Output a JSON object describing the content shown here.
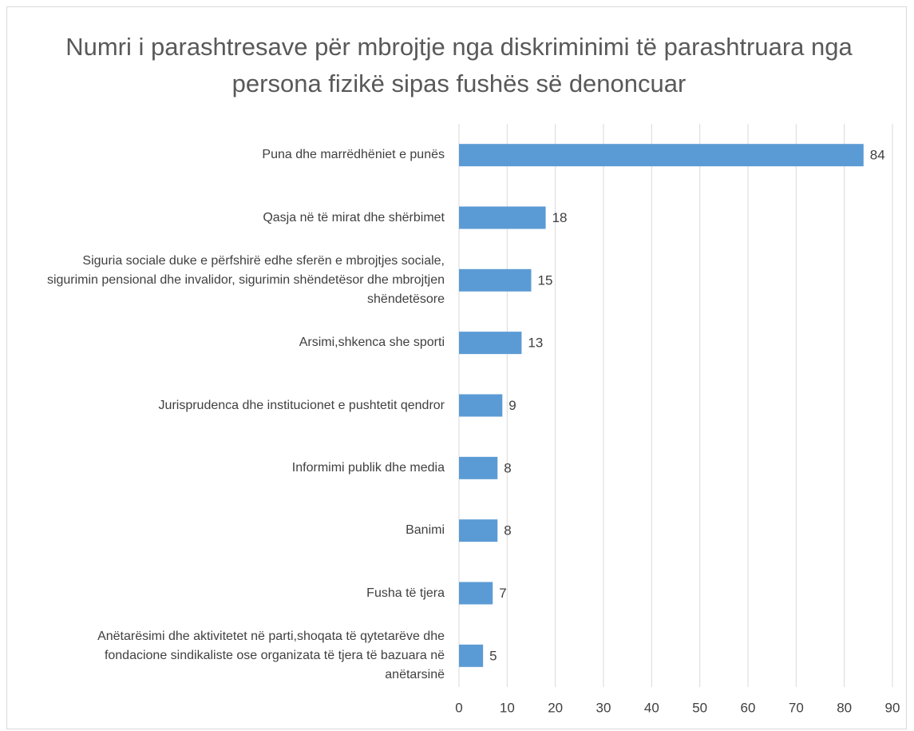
{
  "chart_data": {
    "type": "bar",
    "orientation": "horizontal",
    "title": "Numri i parashtresave për mbrojtje nga diskriminimi të parashtruara nga persona fizikë sipas fushës së denoncuar",
    "categories": [
      "Puna dhe marrëdhëniet e punës",
      "Qasja në të mirat dhe shërbimet",
      "Siguria sociale duke e përfshirë edhe sferën e mbrojtjes sociale, sigurimin pensional dhe invalidor, sigurimin shëndetësor dhe mbrojtjen shëndetësore",
      "Arsimi,shkenca she sporti",
      "Jurisprudenca dhe institucionet e pushtetit qendror",
      "Informimi publik dhe media",
      "Banimi",
      "Fusha të tjera",
      "Anëtarësimi dhe aktivitetet në parti,shoqata të qytetarëve dhe fondacione sindikaliste ose organizata të tjera të bazuara në anëtarsinë"
    ],
    "values": [
      84,
      18,
      15,
      13,
      9,
      8,
      8,
      7,
      5
    ],
    "color": "#5b9bd5",
    "xlim": [
      0,
      90
    ],
    "xticks": [
      0,
      10,
      20,
      30,
      40,
      50,
      60,
      70,
      80,
      90
    ],
    "grid": true
  }
}
